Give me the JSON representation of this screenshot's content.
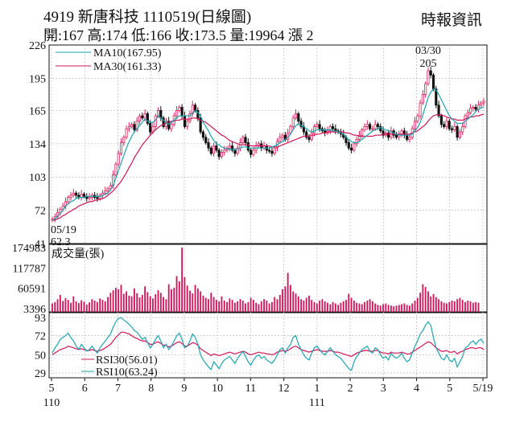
{
  "header": {
    "title": "4919  新唐科技 1110519(日線圖)",
    "ohlc": "開:167 高:174 低:166 收:173.5 量:19964 漲 2",
    "source": "時報資訊"
  },
  "colors": {
    "up": "#e0245e",
    "down": "#111111",
    "ma10": "#1aa6b3",
    "ma30": "#d4145a",
    "volume": "#d4145a",
    "rsi30": "#d4145a",
    "rsi10": "#1aa6b3"
  },
  "chart_data": [
    {
      "type": "candlestick",
      "name": "price",
      "yticks": [
        226,
        195,
        165,
        134,
        103,
        72,
        41
      ],
      "ylim": [
        41,
        226
      ],
      "xticks": [
        {
          "label": "5",
          "sub": "110"
        },
        {
          "label": "6",
          "sub": ""
        },
        {
          "label": "7",
          "sub": ""
        },
        {
          "label": "8",
          "sub": ""
        },
        {
          "label": "9",
          "sub": ""
        },
        {
          "label": "10",
          "sub": ""
        },
        {
          "label": "11",
          "sub": ""
        },
        {
          "label": "12",
          "sub": ""
        },
        {
          "label": "1",
          "sub": "111"
        },
        {
          "label": "2",
          "sub": ""
        },
        {
          "label": "3",
          "sub": ""
        },
        {
          "label": "4",
          "sub": ""
        },
        {
          "label": "5",
          "sub": ""
        },
        {
          "label": "5/19",
          "sub": ""
        }
      ],
      "legend": [
        {
          "label": "MA10(167.95)",
          "color": "ma10"
        },
        {
          "label": "MA30(161.33)",
          "color": "ma30"
        }
      ],
      "annotations": {
        "high_date": "03/30",
        "high_value": "205",
        "low_date": "05/19",
        "low_value": "62.3"
      },
      "series": {
        "close": [
          64,
          66,
          70,
          73,
          76,
          80,
          84,
          86,
          88,
          86,
          84,
          87,
          85,
          83,
          84,
          86,
          84,
          83,
          86,
          88,
          90,
          92,
          95,
          105,
          115,
          125,
          135,
          140,
          148,
          150,
          152,
          147,
          155,
          160,
          158,
          162,
          153,
          145,
          150,
          160,
          165,
          158,
          150,
          155,
          148,
          152,
          160,
          165,
          168,
          160,
          150,
          155,
          162,
          170,
          165,
          158,
          145,
          140,
          135,
          130,
          125,
          132,
          128,
          122,
          126,
          128,
          130,
          132,
          128,
          125,
          130,
          135,
          140,
          135,
          128,
          124,
          128,
          132,
          134,
          130,
          132,
          128,
          127,
          125,
          130,
          136,
          140,
          142,
          138,
          144,
          150,
          158,
          162,
          155,
          150,
          145,
          140,
          138,
          144,
          150,
          152,
          148,
          146,
          144,
          146,
          150,
          148,
          146,
          145,
          143,
          140,
          135,
          130,
          128,
          134,
          138,
          142,
          147,
          150,
          152,
          148,
          148,
          152,
          150,
          146,
          142,
          144,
          140,
          146,
          142,
          140,
          142,
          146,
          142,
          138,
          140,
          148,
          155,
          160,
          172,
          180,
          190,
          202,
          198,
          185,
          170,
          160,
          152,
          150,
          155,
          148,
          147,
          150,
          140,
          145,
          150,
          160,
          163,
          167,
          168,
          166,
          170,
          172,
          173.5
        ],
        "ma10": [
          62.3,
          64,
          67,
          69,
          72,
          76,
          78,
          80,
          81,
          83,
          84,
          84,
          84,
          85,
          85,
          85,
          85,
          85,
          85,
          86,
          87,
          88,
          91,
          95,
          102,
          109,
          116,
          123,
          130,
          136,
          141,
          145,
          148,
          151,
          154,
          157,
          155,
          154,
          154,
          156,
          160,
          158,
          156,
          154,
          152,
          154,
          156,
          158,
          160,
          160,
          160,
          160,
          160,
          163,
          165,
          163,
          160,
          154,
          150,
          146,
          141,
          137,
          134,
          133,
          131,
          130,
          129,
          129,
          129,
          128,
          129,
          130,
          131,
          131,
          130,
          130,
          130,
          130,
          130,
          130,
          130,
          130,
          130,
          131,
          132,
          133,
          135,
          136,
          138,
          140,
          143,
          147,
          151,
          152,
          151,
          150,
          148,
          146,
          145,
          146,
          147,
          147,
          147,
          147,
          147,
          147,
          146,
          146,
          145,
          144,
          143,
          140,
          138,
          136,
          135,
          135,
          136,
          138,
          140,
          142,
          144,
          146,
          147,
          148,
          149,
          148,
          147,
          146,
          145,
          144,
          143,
          142,
          142,
          142,
          142,
          142,
          143,
          146,
          149,
          154,
          161,
          169,
          177,
          182,
          185,
          184,
          180,
          175,
          170,
          165,
          160,
          157,
          155,
          153,
          153,
          153,
          155,
          157,
          159,
          161,
          164,
          166,
          167.5,
          167.95
        ],
        "ma30": [
          62.3,
          63,
          64,
          65,
          67,
          68,
          70,
          71,
          73,
          74,
          76,
          77,
          78,
          79,
          80,
          80,
          81,
          82,
          82,
          83,
          84,
          86,
          88,
          90,
          93,
          96,
          99,
          103,
          107,
          112,
          116,
          121,
          125,
          129,
          133,
          136,
          139,
          142,
          145,
          147,
          149,
          151,
          152,
          153,
          154,
          155,
          155,
          156,
          156,
          157,
          157,
          157,
          157,
          158,
          158,
          157,
          156,
          155,
          154,
          152,
          150,
          148,
          146,
          144,
          142,
          141,
          139,
          137,
          136,
          135,
          134,
          133,
          133,
          133,
          133,
          132,
          132,
          132,
          132,
          132,
          132,
          132,
          132,
          131,
          131,
          131,
          132,
          133,
          134,
          135,
          136,
          137,
          138,
          139,
          140,
          141,
          141,
          141,
          142,
          142,
          143,
          143,
          144,
          144,
          145,
          145,
          145,
          145,
          145,
          145,
          145,
          144,
          144,
          143,
          142,
          142,
          141,
          141,
          141,
          141,
          141,
          141,
          142,
          142,
          142,
          143,
          143,
          143,
          143,
          143,
          143,
          143,
          143,
          143,
          143,
          143,
          144,
          145,
          146,
          148,
          150,
          152,
          155,
          158,
          160,
          161,
          161,
          161,
          160,
          159,
          158,
          157,
          157,
          156,
          156,
          156,
          157,
          158,
          159,
          159,
          160,
          160,
          161,
          161.33
        ]
      }
    },
    {
      "type": "bar",
      "name": "volume",
      "label": "成交量(張)",
      "yticks": [
        174983,
        117787,
        60591,
        3396
      ],
      "ylim": [
        3396,
        174983
      ],
      "values": [
        18000,
        22000,
        30000,
        42000,
        25000,
        33000,
        28000,
        20000,
        38000,
        24000,
        19000,
        27000,
        23000,
        15000,
        21000,
        30000,
        26000,
        22000,
        32000,
        28000,
        24000,
        36000,
        48000,
        55000,
        62000,
        58000,
        70000,
        45000,
        52000,
        40000,
        38000,
        60000,
        47000,
        35000,
        42000,
        66000,
        50000,
        38000,
        32000,
        44000,
        55000,
        48000,
        36000,
        30000,
        72000,
        58000,
        62000,
        95000,
        80000,
        174983,
        92000,
        68000,
        54000,
        46000,
        70000,
        60000,
        52000,
        40000,
        34000,
        30000,
        48000,
        36000,
        28000,
        24000,
        38000,
        26000,
        22000,
        32000,
        28000,
        20000,
        24000,
        30000,
        26000,
        18000,
        22000,
        34000,
        28000,
        20000,
        16000,
        24000,
        30000,
        26000,
        18000,
        22000,
        36000,
        30000,
        42000,
        58000,
        66000,
        104000,
        70000,
        52000,
        46000,
        38000,
        30000,
        26000,
        34000,
        40000,
        28000,
        22000,
        18000,
        26000,
        30000,
        24000,
        20000,
        16000,
        22000,
        18000,
        14000,
        20000,
        24000,
        28000,
        45000,
        34000,
        26000,
        20000,
        18000,
        16000,
        22000,
        26000,
        30000,
        24000,
        18000,
        14000,
        12000,
        16000,
        18000,
        14000,
        12000,
        10000,
        12000,
        14000,
        16000,
        18000,
        14000,
        12000,
        18000,
        26000,
        34000,
        48000,
        72000,
        64000,
        52000,
        38000,
        44000,
        36000,
        30000,
        24000,
        20000,
        18000,
        22000,
        26000,
        24000,
        30000,
        34000,
        28000,
        22000,
        26000,
        24000,
        20000,
        22000,
        19964
      ]
    },
    {
      "type": "line",
      "name": "rsi",
      "yticks": [
        93,
        72,
        50,
        29
      ],
      "ylim": [
        29,
        93
      ],
      "legend": [
        {
          "label": "RSI30(56.01)",
          "color": "rsi30"
        },
        {
          "label": "RSI10(63.24)",
          "color": "rsi10"
        }
      ],
      "series": {
        "rsi10": [
          52,
          58,
          62,
          68,
          70,
          72,
          75,
          70,
          66,
          60,
          56,
          62,
          58,
          54,
          56,
          60,
          56,
          52,
          58,
          62,
          66,
          70,
          74,
          82,
          88,
          92,
          93,
          90,
          88,
          85,
          82,
          78,
          76,
          72,
          68,
          70,
          64,
          58,
          62,
          68,
          72,
          66,
          58,
          62,
          56,
          60,
          66,
          72,
          75,
          68,
          58,
          60,
          66,
          74,
          70,
          62,
          50,
          44,
          40,
          36,
          33,
          42,
          38,
          34,
          40,
          44,
          46,
          48,
          44,
          40,
          46,
          50,
          54,
          48,
          42,
          38,
          44,
          48,
          50,
          46,
          48,
          44,
          42,
          40,
          44,
          50,
          56,
          58,
          52,
          58,
          62,
          70,
          72,
          62,
          56,
          50,
          46,
          44,
          52,
          58,
          60,
          56,
          52,
          50,
          54,
          58,
          54,
          50,
          48,
          46,
          42,
          38,
          34,
          32,
          42,
          48,
          52,
          56,
          58,
          60,
          54,
          52,
          58,
          56,
          50,
          46,
          48,
          44,
          52,
          48,
          46,
          48,
          52,
          46,
          42,
          44,
          52,
          60,
          66,
          74,
          78,
          84,
          88,
          84,
          70,
          58,
          52,
          46,
          44,
          50,
          44,
          42,
          46,
          36,
          42,
          48,
          58,
          60,
          64,
          66,
          62,
          66,
          68,
          63.24
        ],
        "rsi30": [
          50,
          52,
          54,
          56,
          57,
          58,
          60,
          59,
          58,
          57,
          56,
          57,
          56,
          55,
          55,
          56,
          55,
          54,
          55,
          56,
          58,
          60,
          62,
          66,
          70,
          73,
          76,
          76,
          75,
          74,
          72,
          70,
          69,
          67,
          66,
          66,
          64,
          62,
          62,
          64,
          65,
          63,
          61,
          61,
          59,
          60,
          62,
          64,
          65,
          63,
          60,
          60,
          62,
          64,
          63,
          61,
          57,
          55,
          53,
          51,
          49,
          51,
          50,
          49,
          50,
          51,
          52,
          53,
          52,
          51,
          52,
          53,
          54,
          53,
          51,
          50,
          51,
          52,
          53,
          52,
          52,
          51,
          51,
          50,
          51,
          53,
          54,
          55,
          54,
          55,
          57,
          59,
          60,
          58,
          56,
          55,
          54,
          53,
          54,
          55,
          56,
          55,
          54,
          54,
          54,
          55,
          54,
          53,
          53,
          52,
          51,
          50,
          49,
          48,
          50,
          52,
          53,
          54,
          55,
          55,
          54,
          54,
          55,
          55,
          53,
          52,
          52,
          51,
          53,
          52,
          52,
          52,
          53,
          52,
          51,
          51,
          53,
          55,
          57,
          59,
          61,
          63,
          65,
          64,
          61,
          58,
          56,
          54,
          54,
          55,
          53,
          53,
          54,
          51,
          53,
          54,
          56,
          57,
          58,
          58,
          57,
          58,
          58,
          56.01
        ]
      }
    }
  ]
}
